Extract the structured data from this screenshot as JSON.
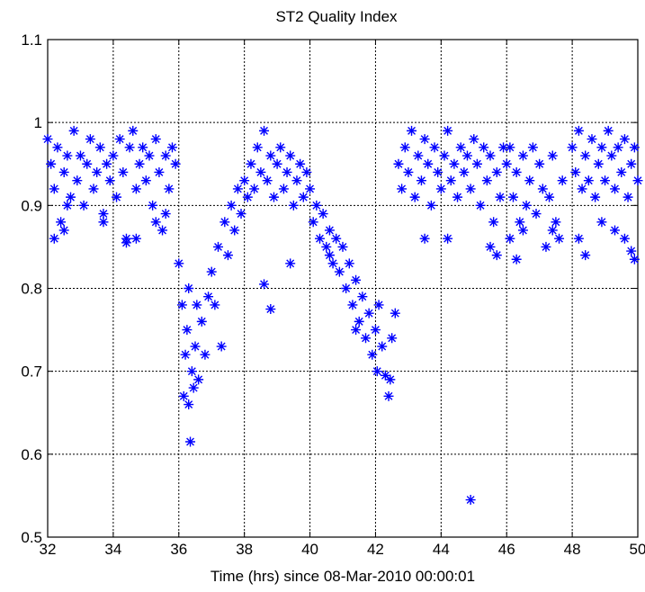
{
  "chart_data": {
    "type": "scatter",
    "title": "ST2 Quality Index",
    "xlabel": "Time (hrs) since 08-Mar-2010 00:00:01",
    "ylabel": "",
    "xlim": [
      32,
      50
    ],
    "ylim": [
      0.5,
      1.1
    ],
    "xticks": [
      32,
      34,
      36,
      38,
      40,
      42,
      44,
      46,
      48,
      50
    ],
    "yticks": [
      0.5,
      0.6,
      0.7,
      0.8,
      0.9,
      1.0,
      1.1
    ],
    "xtick_labels": [
      "32",
      "34",
      "36",
      "38",
      "40",
      "42",
      "44",
      "46",
      "48",
      "50"
    ],
    "ytick_labels": [
      "0.5",
      "0.6",
      "0.7",
      "0.8",
      "0.9",
      "1",
      "1.1"
    ],
    "grid": true,
    "marker": "asterisk",
    "series_color": "#0000ff",
    "series": [
      {
        "points": [
          [
            32.0,
            0.98
          ],
          [
            32.1,
            0.95
          ],
          [
            32.2,
            0.92
          ],
          [
            32.3,
            0.97
          ],
          [
            32.4,
            0.88
          ],
          [
            32.5,
            0.94
          ],
          [
            32.6,
            0.96
          ],
          [
            32.7,
            0.91
          ],
          [
            32.8,
            0.99
          ],
          [
            32.9,
            0.93
          ],
          [
            33.0,
            0.96
          ],
          [
            33.1,
            0.9
          ],
          [
            33.2,
            0.95
          ],
          [
            33.3,
            0.98
          ],
          [
            33.4,
            0.92
          ],
          [
            33.5,
            0.94
          ],
          [
            33.6,
            0.97
          ],
          [
            33.7,
            0.89
          ],
          [
            33.8,
            0.95
          ],
          [
            33.9,
            0.93
          ],
          [
            34.0,
            0.96
          ],
          [
            34.1,
            0.91
          ],
          [
            34.2,
            0.98
          ],
          [
            34.3,
            0.94
          ],
          [
            34.4,
            0.86
          ],
          [
            34.5,
            0.97
          ],
          [
            34.6,
            0.99
          ],
          [
            34.7,
            0.92
          ],
          [
            34.8,
            0.95
          ],
          [
            34.9,
            0.97
          ],
          [
            35.0,
            0.93
          ],
          [
            35.1,
            0.96
          ],
          [
            35.2,
            0.9
          ],
          [
            35.3,
            0.98
          ],
          [
            35.4,
            0.94
          ],
          [
            35.5,
            0.87
          ],
          [
            35.6,
            0.96
          ],
          [
            35.7,
            0.92
          ],
          [
            35.8,
            0.97
          ],
          [
            35.9,
            0.95
          ],
          [
            32.2,
            0.86
          ],
          [
            32.5,
            0.87
          ],
          [
            33.7,
            0.88
          ],
          [
            34.4,
            0.855
          ],
          [
            34.7,
            0.86
          ],
          [
            35.3,
            0.88
          ],
          [
            35.6,
            0.89
          ],
          [
            32.6,
            0.9
          ],
          [
            36.0,
            0.83
          ],
          [
            36.1,
            0.78
          ],
          [
            36.15,
            0.67
          ],
          [
            36.2,
            0.72
          ],
          [
            36.25,
            0.75
          ],
          [
            36.3,
            0.66
          ],
          [
            36.35,
            0.615
          ],
          [
            36.4,
            0.7
          ],
          [
            36.45,
            0.68
          ],
          [
            36.5,
            0.73
          ],
          [
            36.55,
            0.78
          ],
          [
            36.6,
            0.69
          ],
          [
            36.7,
            0.76
          ],
          [
            36.8,
            0.72
          ],
          [
            36.9,
            0.79
          ],
          [
            37.0,
            0.82
          ],
          [
            37.1,
            0.78
          ],
          [
            37.2,
            0.85
          ],
          [
            37.3,
            0.73
          ],
          [
            37.4,
            0.88
          ],
          [
            37.5,
            0.84
          ],
          [
            37.6,
            0.9
          ],
          [
            37.7,
            0.87
          ],
          [
            37.8,
            0.92
          ],
          [
            37.9,
            0.89
          ],
          [
            38.0,
            0.93
          ],
          [
            38.1,
            0.91
          ],
          [
            38.2,
            0.95
          ],
          [
            38.3,
            0.92
          ],
          [
            38.4,
            0.97
          ],
          [
            38.5,
            0.94
          ],
          [
            38.6,
            0.99
          ],
          [
            38.7,
            0.93
          ],
          [
            38.8,
            0.96
          ],
          [
            38.9,
            0.91
          ],
          [
            39.0,
            0.95
          ],
          [
            39.1,
            0.97
          ],
          [
            39.2,
            0.92
          ],
          [
            39.3,
            0.94
          ],
          [
            39.4,
            0.96
          ],
          [
            39.5,
            0.9
          ],
          [
            39.6,
            0.93
          ],
          [
            39.7,
            0.95
          ],
          [
            39.8,
            0.91
          ],
          [
            39.9,
            0.94
          ],
          [
            40.0,
            0.92
          ],
          [
            40.1,
            0.88
          ],
          [
            40.2,
            0.9
          ],
          [
            40.3,
            0.86
          ],
          [
            40.4,
            0.89
          ],
          [
            40.5,
            0.85
          ],
          [
            40.6,
            0.87
          ],
          [
            40.7,
            0.83
          ],
          [
            40.8,
            0.86
          ],
          [
            40.9,
            0.82
          ],
          [
            41.0,
            0.85
          ],
          [
            41.1,
            0.8
          ],
          [
            41.2,
            0.83
          ],
          [
            41.3,
            0.78
          ],
          [
            41.4,
            0.81
          ],
          [
            41.5,
            0.76
          ],
          [
            41.6,
            0.79
          ],
          [
            41.7,
            0.74
          ],
          [
            41.8,
            0.77
          ],
          [
            41.9,
            0.72
          ],
          [
            42.0,
            0.75
          ],
          [
            42.05,
            0.7
          ],
          [
            42.1,
            0.78
          ],
          [
            42.2,
            0.73
          ],
          [
            42.3,
            0.695
          ],
          [
            42.4,
            0.67
          ],
          [
            42.45,
            0.69
          ],
          [
            42.5,
            0.74
          ],
          [
            42.6,
            0.77
          ],
          [
            38.6,
            0.805
          ],
          [
            38.8,
            0.775
          ],
          [
            39.4,
            0.83
          ],
          [
            40.6,
            0.84
          ],
          [
            41.4,
            0.75
          ],
          [
            36.3,
            0.8
          ],
          [
            42.7,
            0.95
          ],
          [
            42.8,
            0.92
          ],
          [
            42.9,
            0.97
          ],
          [
            43.0,
            0.94
          ],
          [
            43.1,
            0.99
          ],
          [
            43.2,
            0.91
          ],
          [
            43.3,
            0.96
          ],
          [
            43.4,
            0.93
          ],
          [
            43.5,
            0.98
          ],
          [
            43.6,
            0.95
          ],
          [
            43.7,
            0.9
          ],
          [
            43.8,
            0.97
          ],
          [
            43.9,
            0.94
          ],
          [
            44.0,
            0.92
          ],
          [
            44.1,
            0.96
          ],
          [
            44.2,
            0.99
          ],
          [
            44.3,
            0.93
          ],
          [
            44.4,
            0.95
          ],
          [
            44.5,
            0.91
          ],
          [
            44.6,
            0.97
          ],
          [
            44.7,
            0.94
          ],
          [
            44.8,
            0.96
          ],
          [
            44.9,
            0.92
          ],
          [
            45.0,
            0.98
          ],
          [
            45.1,
            0.95
          ],
          [
            45.2,
            0.9
          ],
          [
            45.3,
            0.97
          ],
          [
            45.4,
            0.93
          ],
          [
            45.5,
            0.96
          ],
          [
            45.6,
            0.88
          ],
          [
            45.7,
            0.94
          ],
          [
            45.8,
            0.91
          ],
          [
            45.9,
            0.97
          ],
          [
            44.9,
            0.545
          ],
          [
            44.2,
            0.86
          ],
          [
            45.7,
            0.84
          ],
          [
            45.5,
            0.85
          ],
          [
            43.5,
            0.86
          ],
          [
            46.0,
            0.95
          ],
          [
            46.1,
            0.97
          ],
          [
            46.2,
            0.91
          ],
          [
            46.3,
            0.94
          ],
          [
            46.4,
            0.88
          ],
          [
            46.5,
            0.96
          ],
          [
            46.6,
            0.9
          ],
          [
            46.7,
            0.93
          ],
          [
            46.8,
            0.97
          ],
          [
            46.9,
            0.89
          ],
          [
            47.0,
            0.95
          ],
          [
            47.1,
            0.92
          ],
          [
            47.2,
            0.85
          ],
          [
            47.3,
            0.91
          ],
          [
            47.4,
            0.96
          ],
          [
            47.5,
            0.88
          ],
          [
            47.6,
            0.86
          ],
          [
            47.7,
            0.93
          ],
          [
            46.1,
            0.86
          ],
          [
            46.3,
            0.835
          ],
          [
            46.5,
            0.87
          ],
          [
            47.4,
            0.87
          ],
          [
            48.0,
            0.97
          ],
          [
            48.1,
            0.94
          ],
          [
            48.2,
            0.99
          ],
          [
            48.3,
            0.92
          ],
          [
            48.4,
            0.96
          ],
          [
            48.5,
            0.93
          ],
          [
            48.6,
            0.98
          ],
          [
            48.7,
            0.91
          ],
          [
            48.8,
            0.95
          ],
          [
            48.9,
            0.97
          ],
          [
            49.0,
            0.93
          ],
          [
            49.1,
            0.99
          ],
          [
            49.2,
            0.96
          ],
          [
            49.3,
            0.92
          ],
          [
            49.4,
            0.97
          ],
          [
            49.5,
            0.94
          ],
          [
            49.6,
            0.98
          ],
          [
            49.7,
            0.91
          ],
          [
            49.8,
            0.95
          ],
          [
            49.9,
            0.97
          ],
          [
            50.0,
            0.93
          ],
          [
            48.4,
            0.84
          ],
          [
            48.9,
            0.88
          ],
          [
            49.3,
            0.87
          ],
          [
            49.8,
            0.845
          ],
          [
            49.9,
            0.835
          ],
          [
            48.2,
            0.86
          ],
          [
            49.6,
            0.86
          ]
        ]
      }
    ]
  }
}
